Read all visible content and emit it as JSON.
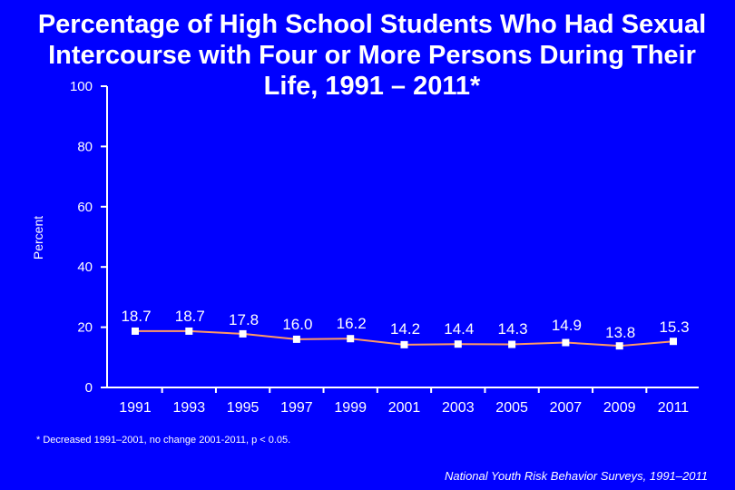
{
  "chart_data": {
    "type": "line",
    "title": "Percentage of High School Students Who Had Sexual Intercourse with Four or More Persons During Their Life, 1991 – 2011*",
    "ylabel": "Percent",
    "xlabel": "",
    "categories": [
      "1991",
      "1993",
      "1995",
      "1997",
      "1999",
      "2001",
      "2003",
      "2005",
      "2007",
      "2009",
      "2011"
    ],
    "series": [
      {
        "values": [
          18.7,
          18.7,
          17.8,
          16.0,
          16.2,
          14.2,
          14.4,
          14.3,
          14.9,
          13.8,
          15.3
        ]
      }
    ],
    "data_labels": [
      "18.7",
      "18.7",
      "17.8",
      "16.0",
      "16.2",
      "14.2",
      "14.4",
      "14.3",
      "14.9",
      "13.8",
      "15.3"
    ],
    "ylim": [
      0,
      100
    ],
    "yticks": [
      "0",
      "20",
      "40",
      "60",
      "80",
      "100"
    ],
    "grid": false,
    "colors": {
      "background": "#0000ff",
      "line": "#ff9966",
      "marker": "#ffffff",
      "text": "#ffffff",
      "axis": "#ffffff"
    }
  },
  "footnote": "* Decreased 1991–2001, no change 2001-2011, p < 0.05.",
  "source": "National Youth Risk Behavior Surveys, 1991–2011"
}
